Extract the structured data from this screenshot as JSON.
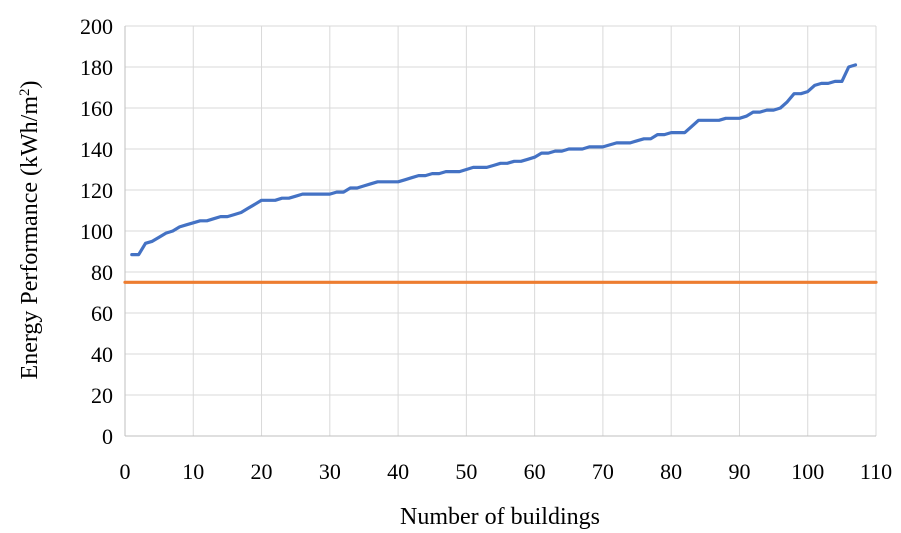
{
  "chart_data": {
    "type": "line",
    "xlabel": "Number of buildings",
    "ylabel_parts": [
      "Energy  Performance  (kWh/m",
      "2",
      ")"
    ],
    "xlim": [
      0,
      110
    ],
    "ylim": [
      0,
      200
    ],
    "x_ticks": [
      "0",
      "10",
      "20",
      "30",
      "40",
      "50",
      "60",
      "70",
      "80",
      "90",
      "100",
      "110"
    ],
    "y_ticks": [
      "0",
      "20",
      "40",
      "60",
      "80",
      "100",
      "120",
      "140",
      "160",
      "180",
      "200"
    ],
    "grid": true,
    "legend": "none",
    "series": [
      {
        "color": "#4472c4",
        "x": [
          1,
          2,
          3,
          4,
          5,
          6,
          7,
          8,
          9,
          10,
          11,
          12,
          13,
          14,
          15,
          16,
          17,
          18,
          19,
          20,
          21,
          22,
          23,
          24,
          25,
          26,
          27,
          28,
          29,
          30,
          31,
          32,
          33,
          34,
          35,
          36,
          37,
          38,
          39,
          40,
          41,
          42,
          43,
          44,
          45,
          46,
          47,
          48,
          49,
          50,
          51,
          52,
          53,
          54,
          55,
          56,
          57,
          58,
          59,
          60,
          61,
          62,
          63,
          64,
          65,
          66,
          67,
          68,
          69,
          70,
          71,
          72,
          73,
          74,
          75,
          76,
          77,
          78,
          79,
          80,
          81,
          82,
          83,
          84,
          85,
          86,
          87,
          88,
          89,
          90,
          91,
          92,
          93,
          94,
          95,
          96,
          97,
          98,
          99,
          100,
          101,
          102,
          103,
          104,
          105,
          106,
          107
        ],
        "y": [
          88.5,
          88.5,
          94,
          95,
          97,
          99,
          100,
          102,
          103,
          104,
          105,
          105,
          106,
          107,
          107,
          108,
          109,
          111,
          113,
          115,
          115,
          115,
          116,
          116,
          117,
          118,
          118,
          118,
          118,
          118,
          119,
          119,
          121,
          121,
          122,
          123,
          124,
          124,
          124,
          124,
          125,
          126,
          127,
          127,
          128,
          128,
          129,
          129,
          129,
          130,
          131,
          131,
          131,
          132,
          133,
          133,
          134,
          134,
          135,
          136,
          138,
          138,
          139,
          139,
          140,
          140,
          140,
          141,
          141,
          141,
          142,
          143,
          143,
          143,
          144,
          145,
          145,
          147,
          147,
          148,
          148,
          148,
          151,
          154,
          154,
          154,
          154,
          155,
          155,
          155,
          156,
          158,
          158,
          159,
          159,
          160,
          163,
          167,
          167,
          168,
          171,
          172,
          172,
          173,
          173,
          180,
          181
        ]
      },
      {
        "color": "#ed7d31",
        "x": [
          0,
          110
        ],
        "y": [
          75,
          75
        ]
      }
    ]
  }
}
